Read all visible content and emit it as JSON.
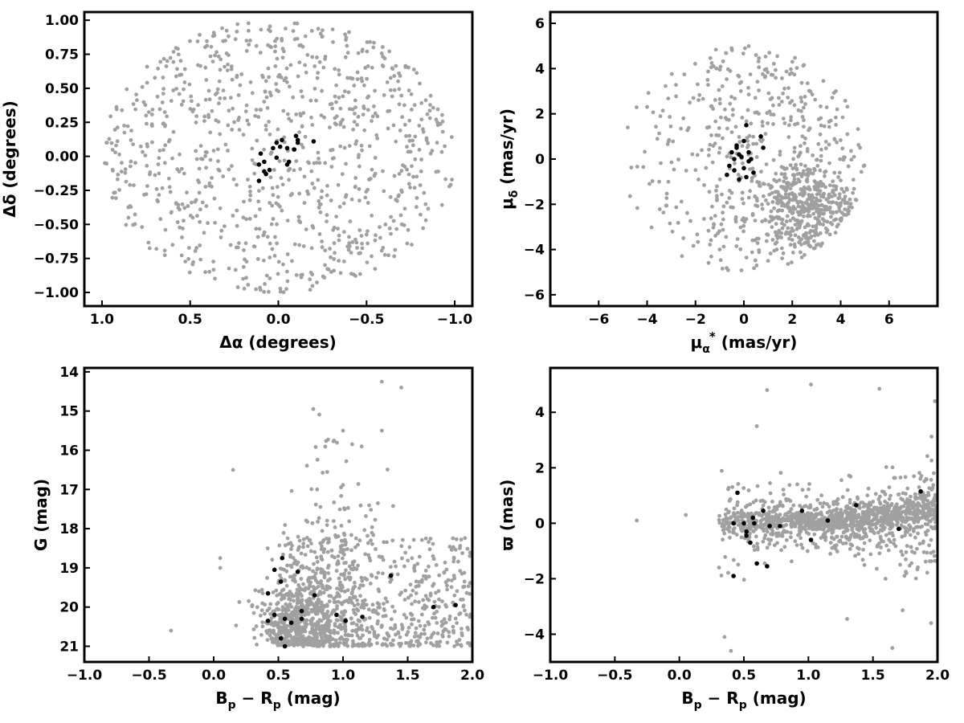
{
  "colors": {
    "field_stars": "#a0a0a0",
    "members": "#000000",
    "frame": "#000000"
  },
  "chart_data": [
    {
      "type": "scatter",
      "id": "sky",
      "xlabel": "Δα (degrees)",
      "ylabel": "Δδ (degrees)",
      "xlim": [
        1.1,
        -1.1
      ],
      "ylim": [
        -1.1,
        1.06
      ],
      "x_inverted": true,
      "xticks": [
        1.0,
        0.5,
        0.0,
        -0.5,
        -1.0
      ],
      "xtick_labels": [
        "1.0",
        "0.5",
        "0.0",
        "−0.5",
        "−1.0"
      ],
      "yticks": [
        1.0,
        0.75,
        0.5,
        0.25,
        0.0,
        -0.25,
        -0.5,
        -0.75,
        -1.0
      ],
      "ytick_labels": [
        "1.00",
        "0.75",
        "0.50",
        "0.25",
        "0.00",
        "−0.25",
        "−0.50",
        "−0.75",
        "−1.00"
      ],
      "grid": false,
      "series": [
        {
          "role": "field",
          "distribution": "uniform-disk",
          "count": 900,
          "center": [
            0.0,
            0.0
          ],
          "radius": 1.0,
          "points": [
            [
              0.92,
              0.08
            ],
            [
              0.85,
              -0.45
            ],
            [
              0.55,
              0.6
            ],
            [
              0.3,
              0.85
            ],
            [
              -0.25,
              0.88
            ],
            [
              -0.6,
              0.45
            ],
            [
              -0.9,
              0.1
            ],
            [
              -0.7,
              -0.5
            ],
            [
              -0.3,
              -0.85
            ],
            [
              0.2,
              -0.9
            ],
            [
              0.6,
              -0.65
            ],
            [
              0.75,
              0.3
            ]
          ]
        },
        {
          "role": "members",
          "points": [
            [
              0.1,
              0.02
            ],
            [
              0.08,
              -0.04
            ],
            [
              0.05,
              -0.1
            ],
            [
              0.11,
              -0.18
            ],
            [
              0.07,
              -0.13
            ],
            [
              0.11,
              -0.06
            ],
            [
              0.08,
              -0.11
            ],
            [
              0.01,
              0.1
            ],
            [
              -0.01,
              0.07
            ],
            [
              0.03,
              0.06
            ],
            [
              -0.02,
              0.12
            ],
            [
              -0.05,
              0.06
            ],
            [
              -0.09,
              0.05
            ],
            [
              -0.1,
              0.15
            ],
            [
              -0.11,
              0.12
            ],
            [
              -0.11,
              0.1
            ],
            [
              -0.2,
              0.11
            ],
            [
              -0.06,
              -0.04
            ],
            [
              -0.05,
              -0.06
            ],
            [
              0.01,
              -0.01
            ]
          ]
        }
      ]
    },
    {
      "type": "scatter",
      "id": "pm",
      "xlabel_main": "μ",
      "xlabel_sub": "α",
      "xlabel_sup": "*",
      "xlabel_unit": " (mas/yr)",
      "ylabel_main": "μ",
      "ylabel_sub": "δ",
      "ylabel_unit": " (mas/yr)",
      "xlim": [
        -8,
        8
      ],
      "ylim": [
        -6.5,
        6.5
      ],
      "xticks": [
        -6,
        -4,
        -2,
        0,
        2,
        4,
        6
      ],
      "xtick_labels": [
        "−6",
        "−4",
        "−2",
        "0",
        "2",
        "4",
        "6"
      ],
      "yticks": [
        6,
        4,
        2,
        0,
        -2,
        -4,
        -6
      ],
      "ytick_labels": [
        "6",
        "4",
        "2",
        "0",
        "−2",
        "−4",
        "−6"
      ],
      "grid": false,
      "series": [
        {
          "role": "field",
          "distribution": "disk-with-clump",
          "count": 1000,
          "center": [
            0.0,
            0.0
          ],
          "radius": 5.0,
          "clump_center": [
            2.5,
            -2.0
          ],
          "points": [
            [
              -4.8,
              1.4
            ],
            [
              -4.0,
              2.3
            ],
            [
              -2.5,
              1.8
            ],
            [
              -1.5,
              3.5
            ],
            [
              0.5,
              4.6
            ],
            [
              2.0,
              4.3
            ],
            [
              3.8,
              3.0
            ],
            [
              4.8,
              0.5
            ],
            [
              4.5,
              -1.5
            ],
            [
              3.0,
              -3.8
            ],
            [
              1.0,
              -4.5
            ],
            [
              -1.0,
              -4.0
            ],
            [
              -2.5,
              -3.5
            ],
            [
              -3.5,
              -1.0
            ]
          ]
        },
        {
          "role": "members",
          "points": [
            [
              -0.5,
              0.3
            ],
            [
              -0.3,
              0.6
            ],
            [
              -0.2,
              0.2
            ],
            [
              -0.1,
              0.1
            ],
            [
              0.0,
              0.8
            ],
            [
              0.1,
              1.5
            ],
            [
              0.2,
              -0.1
            ],
            [
              -0.4,
              -0.5
            ],
            [
              -0.7,
              -0.7
            ],
            [
              0.3,
              0.0
            ],
            [
              0.4,
              -0.6
            ],
            [
              0.8,
              0.5
            ],
            [
              0.7,
              1.0
            ],
            [
              -0.2,
              -0.9
            ],
            [
              0.0,
              -0.4
            ],
            [
              -0.3,
              0.5
            ],
            [
              -0.4,
              0.0
            ],
            [
              0.1,
              -0.8
            ],
            [
              0.2,
              0.3
            ],
            [
              -0.6,
              -0.3
            ]
          ]
        }
      ]
    },
    {
      "type": "scatter",
      "id": "cmd",
      "xlabel_main": "B",
      "xlabel_sub1": "p",
      "xlabel_mid": " − R",
      "xlabel_sub2": "p",
      "xlabel_unit": " (mag)",
      "ylabel": "G (mag)",
      "xlim": [
        -1.0,
        2.0
      ],
      "ylim": [
        21.4,
        13.9
      ],
      "y_inverted": true,
      "xticks": [
        -1.0,
        -0.5,
        0.0,
        0.5,
        1.0,
        1.5,
        2.0
      ],
      "xtick_labels": [
        "−1.0",
        "−0.5",
        "0.0",
        "0.5",
        "1.0",
        "1.5",
        "2.0"
      ],
      "yticks": [
        21,
        20,
        19,
        18,
        17,
        16,
        15,
        14
      ],
      "ytick_labels": [
        "21",
        "20",
        "19",
        "18",
        "17",
        "16",
        "15",
        "14"
      ],
      "grid": false,
      "series": [
        {
          "role": "field",
          "distribution": "photometric-cloud",
          "count": 1300,
          "points": [
            [
              -0.33,
              20.6
            ],
            [
              0.05,
              19.0
            ],
            [
              0.05,
              18.75
            ],
            [
              0.15,
              16.5
            ],
            [
              0.35,
              19.6
            ],
            [
              0.6,
              20.6
            ],
            [
              0.8,
              17.0
            ],
            [
              1.0,
              15.5
            ],
            [
              1.3,
              15.5
            ],
            [
              1.45,
              14.4
            ],
            [
              1.3,
              14.25
            ],
            [
              0.77,
              14.95
            ],
            [
              1.55,
              19.0
            ],
            [
              1.85,
              20.5
            ],
            [
              1.98,
              18.7
            ]
          ]
        },
        {
          "role": "members",
          "points": [
            [
              0.42,
              20.35
            ],
            [
              0.42,
              19.65
            ],
            [
              0.47,
              20.2
            ],
            [
              0.52,
              20.8
            ],
            [
              0.55,
              21.0
            ],
            [
              0.55,
              20.3
            ],
            [
              0.6,
              20.4
            ],
            [
              0.68,
              20.3
            ],
            [
              0.68,
              20.1
            ],
            [
              0.78,
              19.7
            ],
            [
              0.47,
              19.05
            ],
            [
              0.52,
              19.35
            ],
            [
              0.53,
              18.75
            ],
            [
              0.65,
              19.1
            ],
            [
              0.95,
              20.2
            ],
            [
              1.02,
              20.35
            ],
            [
              1.15,
              20.25
            ],
            [
              1.37,
              19.2
            ],
            [
              1.7,
              20.0
            ],
            [
              1.87,
              19.95
            ]
          ]
        }
      ]
    },
    {
      "type": "scatter",
      "id": "parallax",
      "xlabel_main": "B",
      "xlabel_sub1": "p",
      "xlabel_mid": " − R",
      "xlabel_sub2": "p",
      "xlabel_unit": " (mag)",
      "ylabel": "ϖ (mas)",
      "xlim": [
        -1.0,
        2.0
      ],
      "ylim": [
        -5.0,
        5.6
      ],
      "xticks": [
        -1.0,
        -0.5,
        0.0,
        0.5,
        1.0,
        1.5,
        2.0
      ],
      "xtick_labels": [
        "−1.0",
        "−0.5",
        "0.0",
        "0.5",
        "1.0",
        "1.5",
        "2.0"
      ],
      "yticks": [
        4,
        2,
        0,
        -2,
        -4
      ],
      "ytick_labels": [
        "4",
        "2",
        "0",
        "−2",
        "−4"
      ],
      "grid": false,
      "series": [
        {
          "role": "field",
          "distribution": "funnel",
          "count": 1300,
          "points": [
            [
              -0.33,
              0.1
            ],
            [
              0.05,
              0.3
            ],
            [
              0.35,
              -4.1
            ],
            [
              0.4,
              -4.6
            ],
            [
              0.6,
              3.5
            ],
            [
              0.68,
              4.8
            ],
            [
              1.02,
              5.0
            ],
            [
              1.3,
              -3.45
            ],
            [
              1.55,
              4.85
            ],
            [
              1.65,
              -4.5
            ],
            [
              1.95,
              -3.6
            ],
            [
              1.98,
              4.4
            ]
          ]
        },
        {
          "role": "members",
          "points": [
            [
              0.42,
              -1.9
            ],
            [
              0.45,
              1.1
            ],
            [
              0.5,
              0.0
            ],
            [
              0.52,
              -0.3
            ],
            [
              0.52,
              -0.45
            ],
            [
              0.55,
              -0.7
            ],
            [
              0.57,
              0.2
            ],
            [
              0.6,
              -1.45
            ],
            [
              0.65,
              0.45
            ],
            [
              0.68,
              -1.55
            ],
            [
              0.7,
              -0.1
            ],
            [
              0.78,
              -0.1
            ],
            [
              0.95,
              0.45
            ],
            [
              1.02,
              -0.6
            ],
            [
              1.15,
              0.1
            ],
            [
              1.37,
              0.65
            ],
            [
              1.7,
              -0.2
            ],
            [
              1.87,
              1.15
            ],
            [
              0.42,
              0.0
            ],
            [
              0.58,
              0.0
            ]
          ]
        }
      ]
    }
  ]
}
